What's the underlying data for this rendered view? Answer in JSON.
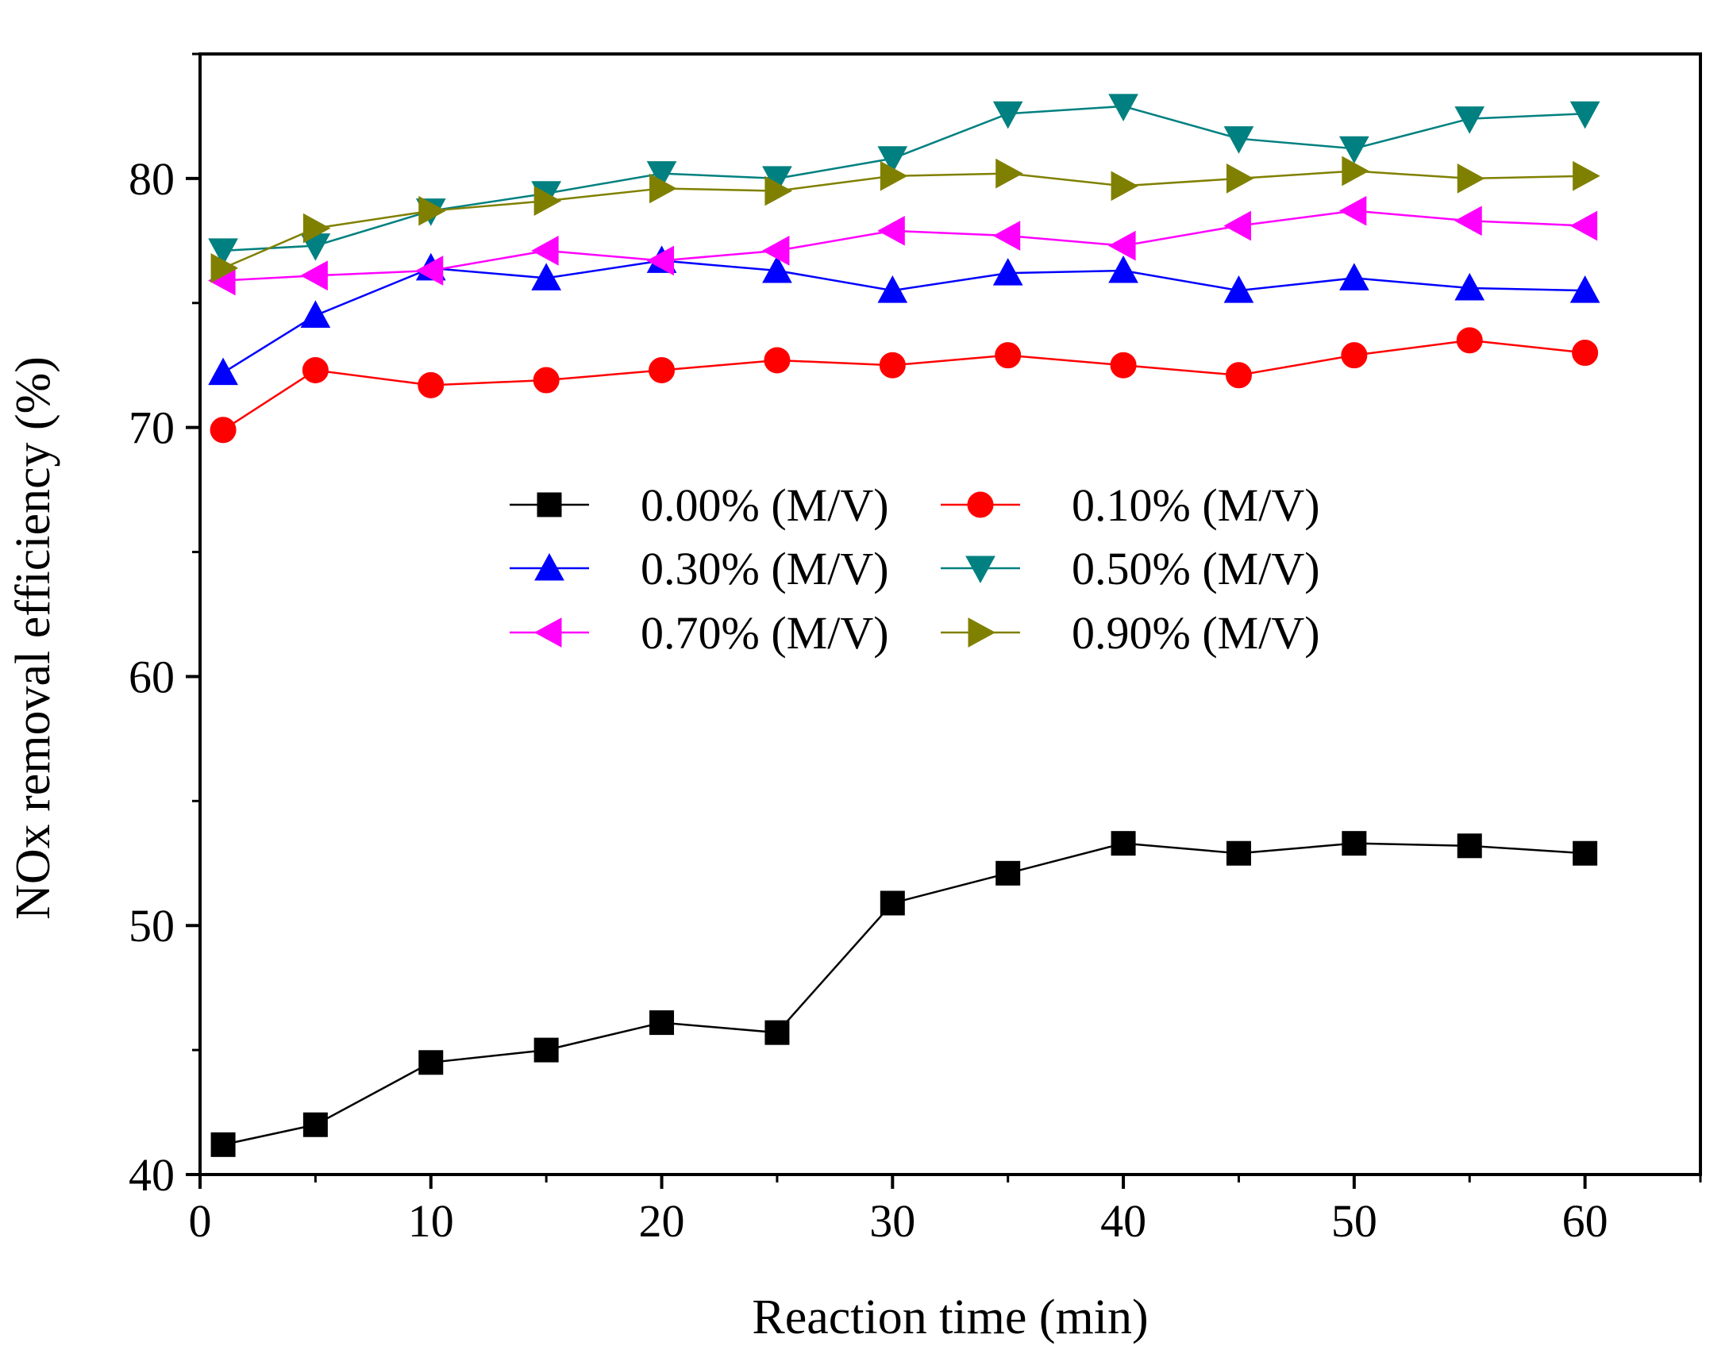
{
  "chart_data": {
    "type": "line",
    "xlabel": "Reaction time (min)",
    "ylabel": "NOx removal efficiency (%)",
    "xlim": [
      0,
      65
    ],
    "ylim": [
      40,
      85
    ],
    "xticks": [
      0,
      10,
      20,
      30,
      40,
      50,
      60
    ],
    "yticks": [
      40,
      50,
      60,
      70,
      80
    ],
    "x": [
      1,
      5,
      10,
      15,
      20,
      25,
      30,
      35,
      40,
      45,
      50,
      55,
      60
    ],
    "legend_position": "center",
    "series": [
      {
        "name": "0.00% (M/V)",
        "marker": "square",
        "color": "#000000",
        "values": [
          41.2,
          42.0,
          44.5,
          45.0,
          46.1,
          45.7,
          50.9,
          52.1,
          53.3,
          52.9,
          53.3,
          53.2,
          52.9
        ]
      },
      {
        "name": "0.10% (M/V)",
        "marker": "circle",
        "color": "#ff0000",
        "values": [
          69.9,
          72.3,
          71.7,
          71.9,
          72.3,
          72.7,
          72.5,
          72.9,
          72.5,
          72.1,
          72.9,
          73.5,
          73.0
        ]
      },
      {
        "name": "0.30% (M/V)",
        "marker": "triangle-up",
        "color": "#0000ff",
        "values": [
          72.2,
          74.5,
          76.4,
          76.0,
          76.7,
          76.3,
          75.5,
          76.2,
          76.3,
          75.5,
          76.0,
          75.6,
          75.5
        ]
      },
      {
        "name": "0.50% (M/V)",
        "marker": "triangle-down",
        "color": "#008080",
        "values": [
          77.1,
          77.3,
          78.7,
          79.4,
          80.2,
          80.0,
          80.8,
          82.6,
          82.9,
          81.6,
          81.2,
          82.4,
          82.6
        ]
      },
      {
        "name": "0.70% (M/V)",
        "marker": "triangle-left",
        "color": "#ff00ff",
        "values": [
          75.9,
          76.1,
          76.3,
          77.1,
          76.7,
          77.1,
          77.9,
          77.7,
          77.3,
          78.1,
          78.7,
          78.3,
          78.1
        ]
      },
      {
        "name": "0.90% (M/V)",
        "marker": "triangle-right",
        "color": "#808000",
        "values": [
          76.4,
          78.0,
          78.7,
          79.1,
          79.6,
          79.5,
          80.1,
          80.2,
          79.7,
          80.0,
          80.3,
          80.0,
          80.1
        ]
      }
    ]
  }
}
